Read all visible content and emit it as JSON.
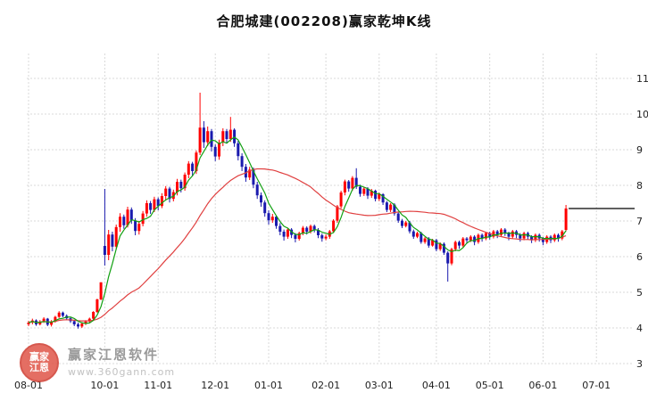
{
  "colors": {
    "up": "#ff0000",
    "down": "#1a1aae",
    "ma_fast": "#11a011",
    "ma_slow": "#e04040",
    "grid": "#d9d9d9",
    "axis_text": "#222222",
    "annotation": "#000000",
    "title_text": "#111111"
  },
  "watermark": {
    "logo_line1": "赢家",
    "logo_line2": "江恩",
    "brand": "赢家江恩软件",
    "url": "www.360gann.com"
  },
  "chart_data": {
    "type": "candlestick",
    "title": "合肥城建(002208)赢家乾坤K线",
    "xlabel": "",
    "ylabel": "",
    "ylim": [
      3,
      11
    ],
    "grid": true,
    "y_ticks": [
      3,
      4,
      5,
      6,
      7,
      8,
      9,
      10,
      11
    ],
    "x_ticks": [
      {
        "index": 0,
        "label": "08-01"
      },
      {
        "index": 20,
        "label": "10-01"
      },
      {
        "index": 34,
        "label": "11-01"
      },
      {
        "index": 49,
        "label": "12-01"
      },
      {
        "index": 63,
        "label": "01-01"
      },
      {
        "index": 78,
        "label": "02-01"
      },
      {
        "index": 92,
        "label": "03-01"
      },
      {
        "index": 107,
        "label": "04-01"
      },
      {
        "index": 121,
        "label": "05-01"
      },
      {
        "index": 135,
        "label": "06-01"
      },
      {
        "index": 149,
        "label": "07-01"
      }
    ],
    "ma_fast_period": 5,
    "ma_slow_period": 30,
    "annotation_line_price": 7.35,
    "candles": [
      [
        4.1,
        4.2,
        4.05,
        4.15
      ],
      [
        4.15,
        4.26,
        4.1,
        4.21
      ],
      [
        4.21,
        4.24,
        4.06,
        4.1
      ],
      [
        4.1,
        4.22,
        4.07,
        4.18
      ],
      [
        4.18,
        4.3,
        4.14,
        4.26
      ],
      [
        4.26,
        4.28,
        4.05,
        4.09
      ],
      [
        4.09,
        4.22,
        4.04,
        4.18
      ],
      [
        4.18,
        4.34,
        4.15,
        4.31
      ],
      [
        4.31,
        4.47,
        4.28,
        4.43
      ],
      [
        4.43,
        4.46,
        4.3,
        4.34
      ],
      [
        4.34,
        4.38,
        4.22,
        4.27
      ],
      [
        4.27,
        4.31,
        4.14,
        4.19
      ],
      [
        4.19,
        4.23,
        4.05,
        4.1
      ],
      [
        4.1,
        4.15,
        3.98,
        4.04
      ],
      [
        4.04,
        4.16,
        4.0,
        4.12
      ],
      [
        4.12,
        4.22,
        4.08,
        4.18
      ],
      [
        4.18,
        4.29,
        4.13,
        4.26
      ],
      [
        4.26,
        4.47,
        4.22,
        4.45
      ],
      [
        4.45,
        4.82,
        4.42,
        4.8
      ],
      [
        4.8,
        5.28,
        4.78,
        5.28
      ],
      [
        6.3,
        7.9,
        5.75,
        6.05
      ],
      [
        6.05,
        6.75,
        5.9,
        6.62
      ],
      [
        6.62,
        6.7,
        6.15,
        6.28
      ],
      [
        6.28,
        6.9,
        6.2,
        6.83
      ],
      [
        6.83,
        7.22,
        6.7,
        7.12
      ],
      [
        7.12,
        7.18,
        6.78,
        6.88
      ],
      [
        6.88,
        7.4,
        6.82,
        7.32
      ],
      [
        7.32,
        7.38,
        6.92,
        7.01
      ],
      [
        7.01,
        7.08,
        6.6,
        6.72
      ],
      [
        6.72,
        7.0,
        6.62,
        6.92
      ],
      [
        6.92,
        7.28,
        6.85,
        7.21
      ],
      [
        7.21,
        7.58,
        7.12,
        7.5
      ],
      [
        7.5,
        7.56,
        7.2,
        7.31
      ],
      [
        7.31,
        7.68,
        7.25,
        7.61
      ],
      [
        7.61,
        7.66,
        7.3,
        7.42
      ],
      [
        7.42,
        7.78,
        7.36,
        7.7
      ],
      [
        7.7,
        7.98,
        7.6,
        7.91
      ],
      [
        7.91,
        7.96,
        7.52,
        7.62
      ],
      [
        7.62,
        7.88,
        7.55,
        7.81
      ],
      [
        7.81,
        8.18,
        7.72,
        8.1
      ],
      [
        8.1,
        8.16,
        7.8,
        7.92
      ],
      [
        7.92,
        8.36,
        7.85,
        8.3
      ],
      [
        8.3,
        8.68,
        8.2,
        8.61
      ],
      [
        8.61,
        8.66,
        8.25,
        8.4
      ],
      [
        8.4,
        8.98,
        8.32,
        8.92
      ],
      [
        8.92,
        10.6,
        8.85,
        9.62
      ],
      [
        9.62,
        9.8,
        9.05,
        9.21
      ],
      [
        9.21,
        9.65,
        9.1,
        9.52
      ],
      [
        9.52,
        9.58,
        8.95,
        9.08
      ],
      [
        9.08,
        9.15,
        8.68,
        8.81
      ],
      [
        8.81,
        9.28,
        8.72,
        9.2
      ],
      [
        9.2,
        9.6,
        9.1,
        9.52
      ],
      [
        9.52,
        9.58,
        9.18,
        9.3
      ],
      [
        9.3,
        9.92,
        9.22,
        9.56
      ],
      [
        9.56,
        9.6,
        9.08,
        9.18
      ],
      [
        9.18,
        9.25,
        8.7,
        8.82
      ],
      [
        8.82,
        8.9,
        8.4,
        8.52
      ],
      [
        8.52,
        8.6,
        8.1,
        8.22
      ],
      [
        8.22,
        8.52,
        8.15,
        8.44
      ],
      [
        8.44,
        8.5,
        7.92,
        8.02
      ],
      [
        8.02,
        8.1,
        7.62,
        7.72
      ],
      [
        7.72,
        7.8,
        7.4,
        7.52
      ],
      [
        7.52,
        7.58,
        7.12,
        7.22
      ],
      [
        7.22,
        7.3,
        6.9,
        7.02
      ],
      [
        7.02,
        7.2,
        6.95,
        7.12
      ],
      [
        7.12,
        7.16,
        6.78,
        6.86
      ],
      [
        6.86,
        6.94,
        6.6,
        6.7
      ],
      [
        6.7,
        6.76,
        6.45,
        6.56
      ],
      [
        6.56,
        6.8,
        6.5,
        6.76
      ],
      [
        6.76,
        6.8,
        6.52,
        6.61
      ],
      [
        6.61,
        6.66,
        6.4,
        6.5
      ],
      [
        6.5,
        6.7,
        6.45,
        6.66
      ],
      [
        6.66,
        6.86,
        6.6,
        6.81
      ],
      [
        6.81,
        6.85,
        6.62,
        6.7
      ],
      [
        6.7,
        6.9,
        6.65,
        6.86
      ],
      [
        6.86,
        6.9,
        6.68,
        6.75
      ],
      [
        6.75,
        6.8,
        6.52,
        6.6
      ],
      [
        6.6,
        6.65,
        6.42,
        6.51
      ],
      [
        6.51,
        6.62,
        6.46,
        6.56
      ],
      [
        6.56,
        6.75,
        6.5,
        6.71
      ],
      [
        6.71,
        7.05,
        6.66,
        7.01
      ],
      [
        7.01,
        7.45,
        6.95,
        7.41
      ],
      [
        7.41,
        7.85,
        7.35,
        7.8
      ],
      [
        7.8,
        8.16,
        7.72,
        8.11
      ],
      [
        8.11,
        8.15,
        7.82,
        7.91
      ],
      [
        7.91,
        8.26,
        7.85,
        8.21
      ],
      [
        8.21,
        8.48,
        7.9,
        7.96
      ],
      [
        7.96,
        8.02,
        7.68,
        7.76
      ],
      [
        7.76,
        7.96,
        7.7,
        7.91
      ],
      [
        7.91,
        7.95,
        7.62,
        7.71
      ],
      [
        7.71,
        7.9,
        7.65,
        7.85
      ],
      [
        7.85,
        7.88,
        7.55,
        7.62
      ],
      [
        7.62,
        7.8,
        7.56,
        7.75
      ],
      [
        7.75,
        7.78,
        7.45,
        7.52
      ],
      [
        7.52,
        7.56,
        7.25,
        7.31
      ],
      [
        7.31,
        7.5,
        7.25,
        7.46
      ],
      [
        7.46,
        7.5,
        7.15,
        7.21
      ],
      [
        7.21,
        7.26,
        6.95,
        7.01
      ],
      [
        7.01,
        7.06,
        6.8,
        6.86
      ],
      [
        6.86,
        7.0,
        6.82,
        6.96
      ],
      [
        6.96,
        7.0,
        6.65,
        6.71
      ],
      [
        6.71,
        6.76,
        6.5,
        6.56
      ],
      [
        6.56,
        6.7,
        6.52,
        6.66
      ],
      [
        6.66,
        6.7,
        6.36,
        6.41
      ],
      [
        6.41,
        6.55,
        6.36,
        6.51
      ],
      [
        6.51,
        6.55,
        6.25,
        6.31
      ],
      [
        6.31,
        6.5,
        6.28,
        6.46
      ],
      [
        6.46,
        6.5,
        6.15,
        6.21
      ],
      [
        6.21,
        6.4,
        6.16,
        6.36
      ],
      [
        6.36,
        6.4,
        6.05,
        6.11
      ],
      [
        6.11,
        6.15,
        5.3,
        5.81
      ],
      [
        5.81,
        6.25,
        5.76,
        6.21
      ],
      [
        6.21,
        6.45,
        6.15,
        6.41
      ],
      [
        6.41,
        6.45,
        6.22,
        6.31
      ],
      [
        6.31,
        6.55,
        6.26,
        6.51
      ],
      [
        6.51,
        6.55,
        6.36,
        6.46
      ],
      [
        6.46,
        6.6,
        6.41,
        6.56
      ],
      [
        6.56,
        6.6,
        6.32,
        6.41
      ],
      [
        6.41,
        6.65,
        6.36,
        6.61
      ],
      [
        6.61,
        6.65,
        6.42,
        6.51
      ],
      [
        6.51,
        6.7,
        6.46,
        6.66
      ],
      [
        6.66,
        6.7,
        6.48,
        6.56
      ],
      [
        6.56,
        6.75,
        6.51,
        6.71
      ],
      [
        6.71,
        6.75,
        6.52,
        6.61
      ],
      [
        6.61,
        6.8,
        6.56,
        6.76
      ],
      [
        6.76,
        6.8,
        6.58,
        6.66
      ],
      [
        6.66,
        6.7,
        6.46,
        6.56
      ],
      [
        6.56,
        6.75,
        6.51,
        6.71
      ],
      [
        6.71,
        6.75,
        6.52,
        6.61
      ],
      [
        6.61,
        6.66,
        6.42,
        6.51
      ],
      [
        6.51,
        6.7,
        6.46,
        6.66
      ],
      [
        6.66,
        6.7,
        6.48,
        6.56
      ],
      [
        6.56,
        6.6,
        6.38,
        6.46
      ],
      [
        6.46,
        6.65,
        6.41,
        6.61
      ],
      [
        6.61,
        6.65,
        6.42,
        6.51
      ],
      [
        6.51,
        6.55,
        6.32,
        6.41
      ],
      [
        6.41,
        6.6,
        6.36,
        6.56
      ],
      [
        6.56,
        6.6,
        6.38,
        6.46
      ],
      [
        6.46,
        6.65,
        6.41,
        6.61
      ],
      [
        6.61,
        6.65,
        6.42,
        6.51
      ],
      [
        6.51,
        6.75,
        6.46,
        6.71
      ],
      [
        6.75,
        7.45,
        6.71,
        7.35
      ]
    ]
  }
}
